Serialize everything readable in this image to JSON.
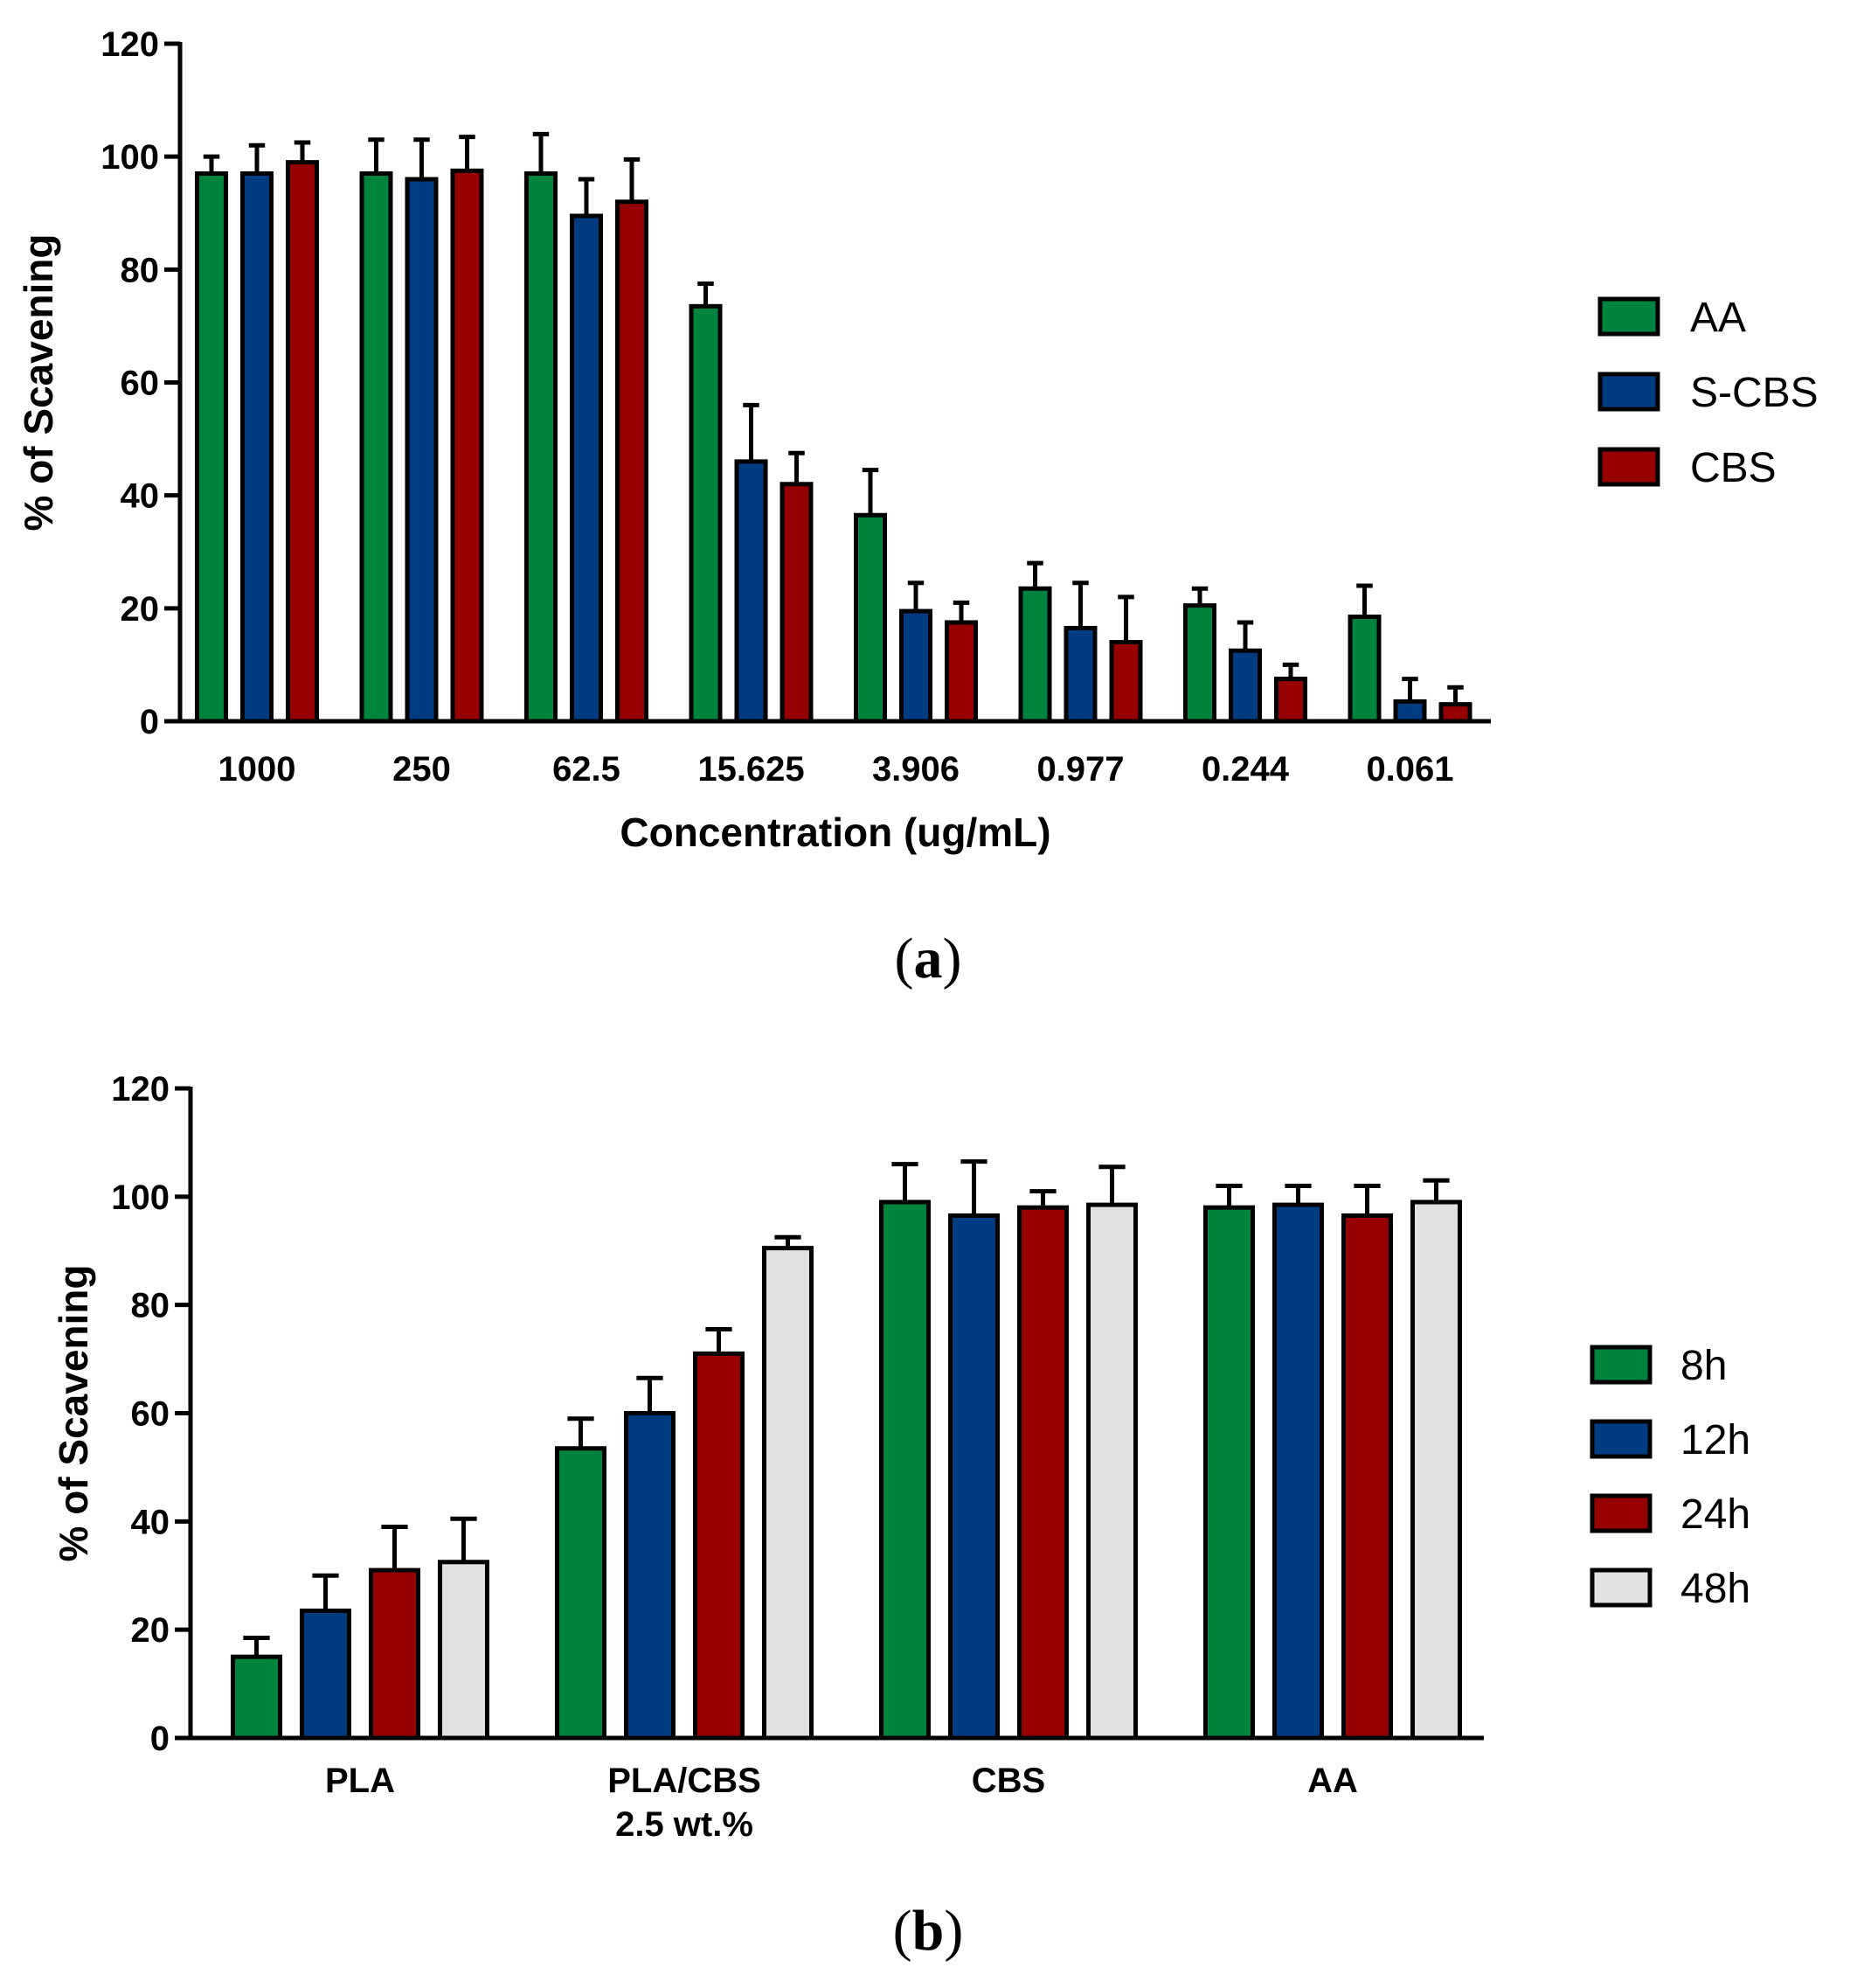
{
  "colors": {
    "green": "#00843d",
    "blue": "#003c82",
    "red": "#960000",
    "gray": "#e1e1e1",
    "outline": "#000000"
  },
  "chart_data": [
    {
      "type": "bar",
      "panel_label": "a",
      "xlabel": "Concentration (ug/mL)",
      "ylabel": "% of Scavening",
      "ylim": [
        0,
        120
      ],
      "yticks": [
        0,
        20,
        40,
        60,
        80,
        100,
        120
      ],
      "categories": [
        "1000",
        "250",
        "62.5",
        "15.625",
        "3.906",
        "0.977",
        "0.244",
        "0.061"
      ],
      "legend_position": "right",
      "series": [
        {
          "name": "AA",
          "color": "#00843d",
          "values": [
            97,
            97,
            97,
            73.5,
            36.5,
            23.5,
            20.5,
            18.5
          ],
          "errors": [
            3,
            6,
            7,
            4,
            8,
            4.5,
            3,
            5.5
          ]
        },
        {
          "name": "S-CBS",
          "color": "#003c82",
          "values": [
            97,
            96,
            89.5,
            46,
            19.5,
            16.5,
            12.5,
            3.5
          ],
          "errors": [
            5,
            7,
            6.5,
            10,
            5,
            8,
            5,
            4
          ]
        },
        {
          "name": "CBS",
          "color": "#960000",
          "values": [
            99,
            97.5,
            92,
            42,
            17.5,
            14,
            7.5,
            3
          ],
          "errors": [
            3.5,
            6,
            7.5,
            5.5,
            3.5,
            8,
            2.5,
            3
          ]
        }
      ]
    },
    {
      "type": "bar",
      "panel_label": "b",
      "xlabel": "",
      "ylabel": "% of Scavening",
      "ylim": [
        0,
        120
      ],
      "yticks": [
        0,
        20,
        40,
        60,
        80,
        100,
        120
      ],
      "categories": [
        "PLA",
        "PLA/CBS\n2.5 wt.%",
        "CBS",
        "AA"
      ],
      "legend_position": "right",
      "series": [
        {
          "name": "8h",
          "color": "#00843d",
          "values": [
            15,
            53.5,
            99,
            98
          ],
          "errors": [
            3.5,
            5.5,
            7,
            4
          ]
        },
        {
          "name": "12h",
          "color": "#003c82",
          "values": [
            23.5,
            60,
            96.5,
            98.5
          ],
          "errors": [
            6.5,
            6.5,
            10,
            3.5
          ]
        },
        {
          "name": "24h",
          "color": "#960000",
          "values": [
            31,
            71,
            98,
            96.5
          ],
          "errors": [
            8,
            4.5,
            3,
            5.5
          ]
        },
        {
          "name": "48h",
          "color": "#e1e1e1",
          "values": [
            32.5,
            90.5,
            98.5,
            99
          ],
          "errors": [
            8,
            2,
            7,
            4
          ]
        }
      ]
    }
  ]
}
